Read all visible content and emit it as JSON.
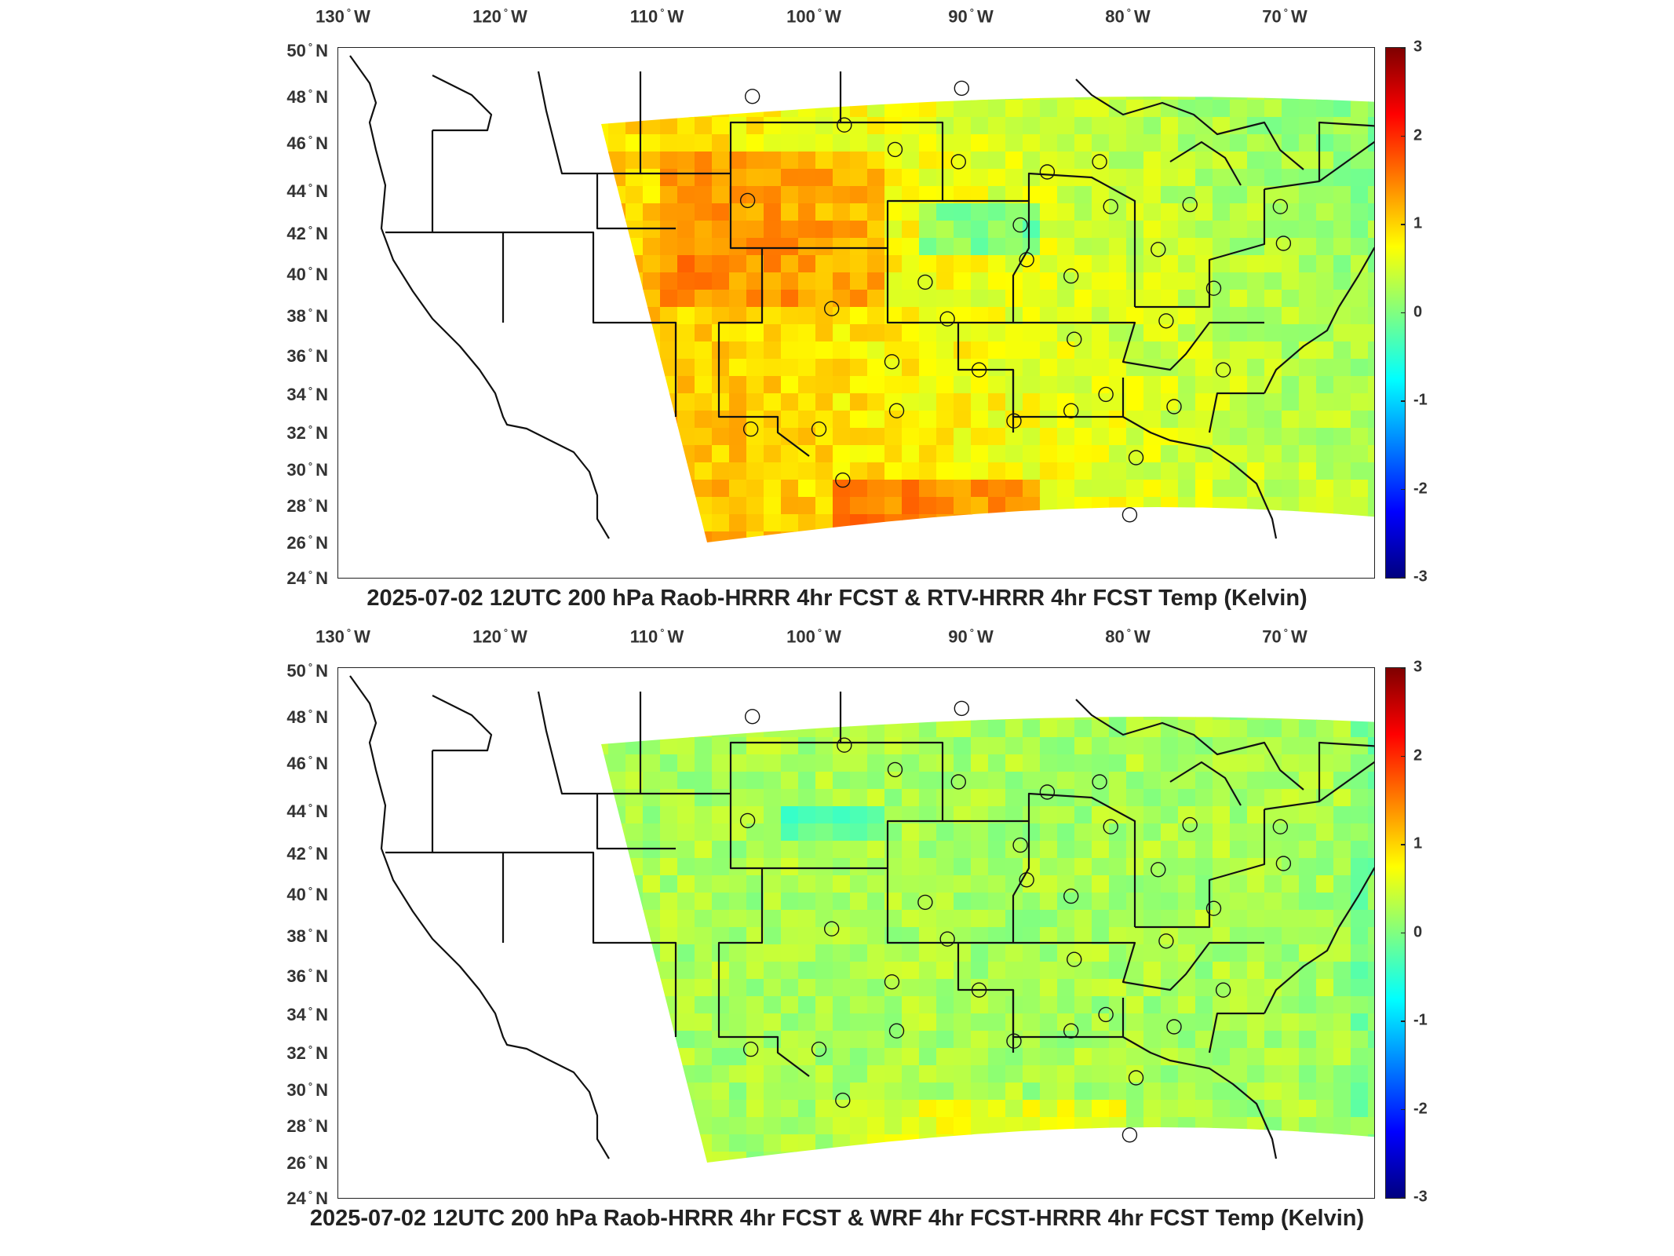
{
  "panels": [
    {
      "caption": "2025-07-02 12UTC 200 hPa Raob-HRRR 4hr FCST & RTV-HRRR 4hr FCST Temp (Kelvin)",
      "field_style": "warm"
    },
    {
      "caption": "2025-07-02 12UTC 200 hPa Raob-HRRR 4hr FCST & WRF 4hr FCST-HRRR 4hr FCST Temp (Kelvin)",
      "field_style": "neutral"
    }
  ],
  "lon_ticks": [
    {
      "num": "130",
      "hemi": "W"
    },
    {
      "num": "120",
      "hemi": "W"
    },
    {
      "num": "110",
      "hemi": "W"
    },
    {
      "num": "100",
      "hemi": "W"
    },
    {
      "num": "90",
      "hemi": "W"
    },
    {
      "num": "80",
      "hemi": "W"
    },
    {
      "num": "70",
      "hemi": "W"
    }
  ],
  "lat_ticks": [
    {
      "num": "50",
      "hemi": "N"
    },
    {
      "num": "48",
      "hemi": "N"
    },
    {
      "num": "46",
      "hemi": "N"
    },
    {
      "num": "44",
      "hemi": "N"
    },
    {
      "num": "42",
      "hemi": "N"
    },
    {
      "num": "40",
      "hemi": "N"
    },
    {
      "num": "38",
      "hemi": "N"
    },
    {
      "num": "36",
      "hemi": "N"
    },
    {
      "num": "34",
      "hemi": "N"
    },
    {
      "num": "32",
      "hemi": "N"
    },
    {
      "num": "30",
      "hemi": "N"
    },
    {
      "num": "28",
      "hemi": "N"
    },
    {
      "num": "26",
      "hemi": "N"
    },
    {
      "num": "24",
      "hemi": "N"
    }
  ],
  "colorbar": {
    "ticks": [
      "3",
      "2",
      "1",
      "0",
      "-1",
      "-2",
      "-3"
    ],
    "colors": [
      "#00007f",
      "#0000ff",
      "#0080ff",
      "#00ffff",
      "#80ff80",
      "#ffff00",
      "#ff8000",
      "#ff0000",
      "#7f0000"
    ]
  },
  "stations_lonlat": [
    [
      -106.6,
      48.2
    ],
    [
      -100.8,
      46.8
    ],
    [
      -97.6,
      45.6
    ],
    [
      -93.4,
      48.6
    ],
    [
      -93.6,
      45.0
    ],
    [
      -88.0,
      44.5
    ],
    [
      -84.7,
      45.0
    ],
    [
      -84.0,
      42.8
    ],
    [
      -79.0,
      42.9
    ],
    [
      -73.3,
      42.8
    ],
    [
      -106.9,
      43.1
    ],
    [
      -89.7,
      41.9
    ],
    [
      -89.3,
      40.2
    ],
    [
      -86.5,
      39.4
    ],
    [
      -81.0,
      40.7
    ],
    [
      -95.7,
      39.1
    ],
    [
      -101.6,
      37.8
    ],
    [
      -94.3,
      37.3
    ],
    [
      -86.3,
      36.3
    ],
    [
      -80.5,
      37.2
    ],
    [
      -77.5,
      38.8
    ],
    [
      -73.1,
      41.0
    ],
    [
      -97.8,
      35.2
    ],
    [
      -92.3,
      34.8
    ],
    [
      -90.1,
      32.3
    ],
    [
      -86.5,
      32.8
    ],
    [
      -84.3,
      33.6
    ],
    [
      -80.0,
      33.0
    ],
    [
      -76.9,
      34.8
    ],
    [
      -106.7,
      31.9
    ],
    [
      -102.4,
      31.9
    ],
    [
      -97.5,
      32.8
    ],
    [
      -100.9,
      29.4
    ],
    [
      -82.4,
      30.5
    ],
    [
      -82.8,
      27.7
    ]
  ]
}
